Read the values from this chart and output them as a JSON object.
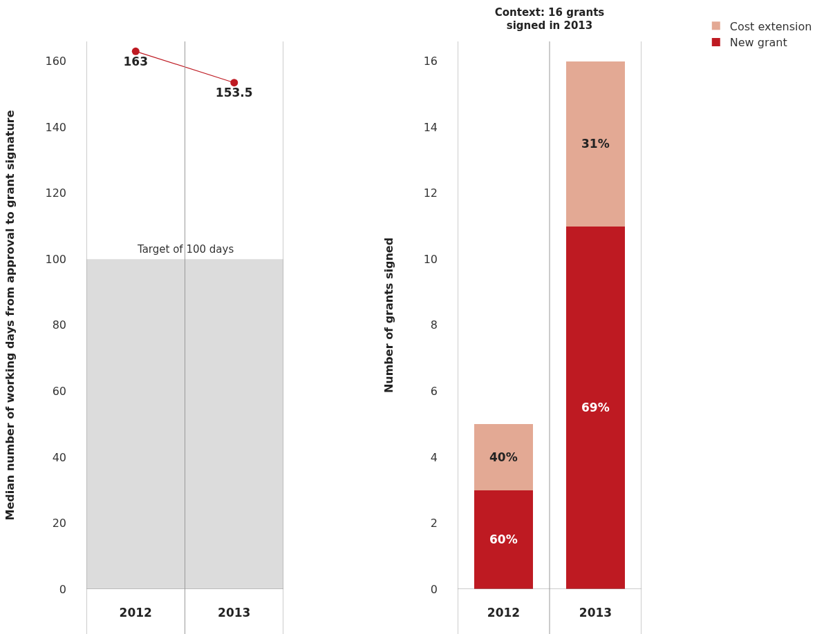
{
  "chart_data": [
    {
      "type": "line",
      "categories": [
        "2012",
        "2013"
      ],
      "ylabel": "Median number of working days from approval to grant signature",
      "ylim": [
        0,
        166
      ],
      "yticks": [
        0,
        20,
        40,
        60,
        80,
        100,
        120,
        140,
        160
      ],
      "marker": "circle",
      "data_labels": true,
      "series": [
        {
          "color": "#be1a22",
          "values": [
            163,
            153.5
          ]
        }
      ],
      "bands": [
        {
          "axis": "y",
          "from": 0,
          "to": 100,
          "label": "Target of 100 days",
          "color": "#dcdcdc"
        }
      ]
    },
    {
      "type": "bar",
      "stacked": true,
      "title": "Context: 16 grants signed in 2013",
      "categories": [
        "2012",
        "2013"
      ],
      "ylabel": "Number of grants signed",
      "ylim": [
        0,
        16.6
      ],
      "yticks": [
        0,
        2,
        4,
        6,
        8,
        10,
        12,
        14,
        16
      ],
      "legend": "top right",
      "series": [
        {
          "name": "New grant",
          "color": "#be1a22",
          "values": [
            3,
            11
          ]
        },
        {
          "name": "Cost extension",
          "color": "#e3a994",
          "values": [
            2,
            5
          ]
        }
      ],
      "annotations": [
        "60%",
        "40%",
        "69%",
        "31%"
      ]
    }
  ]
}
